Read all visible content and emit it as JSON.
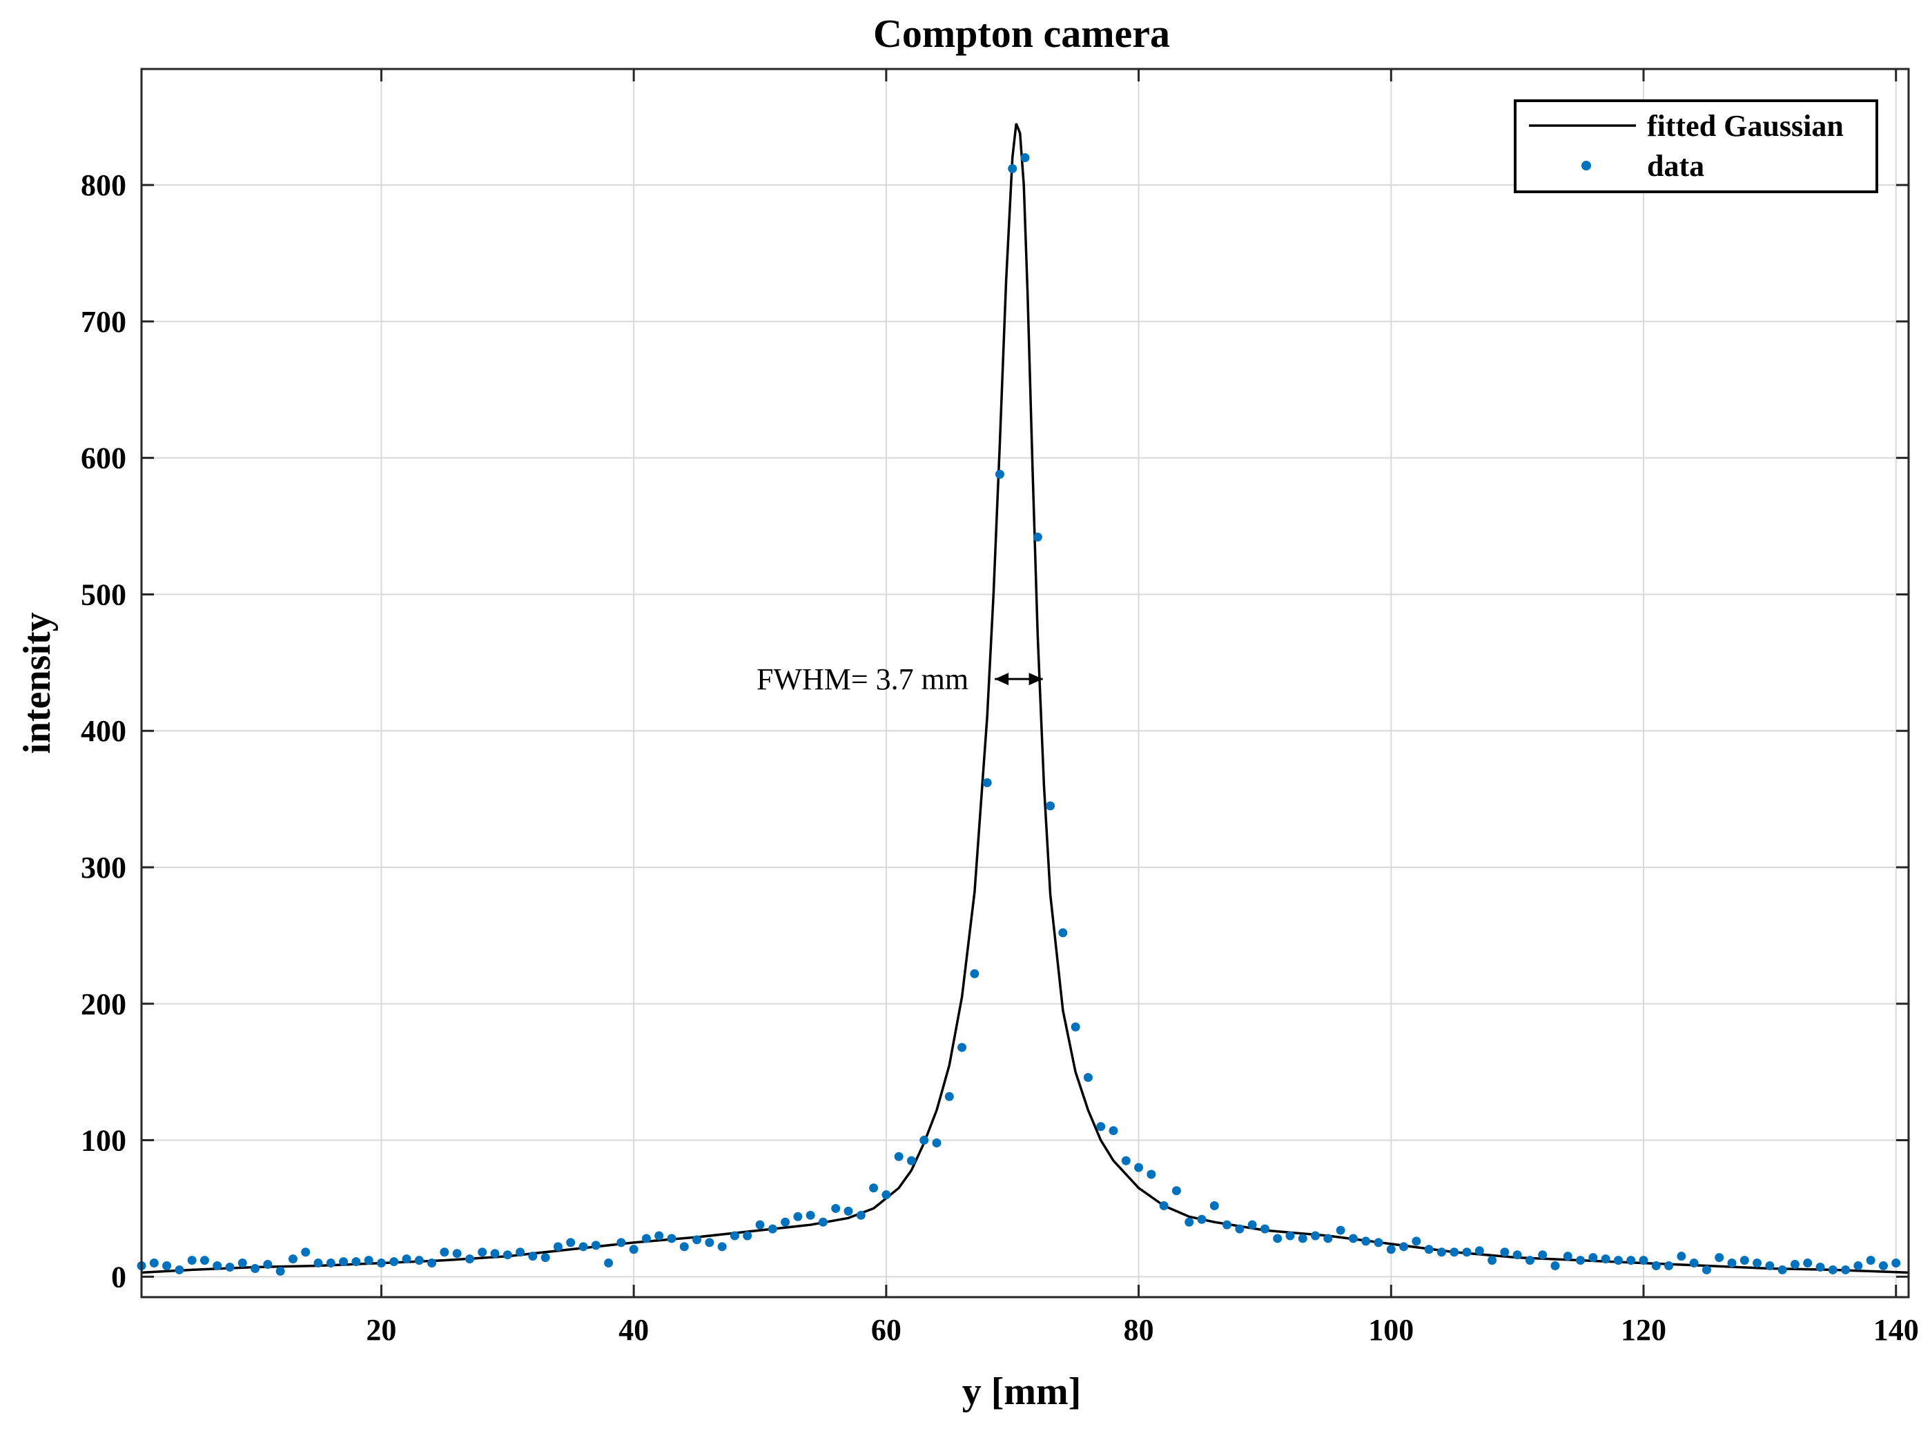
{
  "chart_data": {
    "type": "scatter",
    "title": "Compton camera",
    "xlabel": "y [mm]",
    "ylabel": "intensity",
    "xlim": [
      1,
      141
    ],
    "ylim": [
      -15,
      885
    ],
    "xticks": [
      20,
      40,
      60,
      80,
      100,
      120,
      140
    ],
    "yticks": [
      0,
      100,
      200,
      300,
      400,
      500,
      600,
      700,
      800
    ],
    "grid": true,
    "legend_position": "top-right",
    "colors": {
      "fit": "#000000",
      "data": "#0072bd"
    },
    "annotation": {
      "text": "FWHM= 3.7 mm",
      "x_left": 68.6,
      "x_right": 72.4,
      "y": 438
    },
    "series": [
      {
        "name": "fitted Gaussian",
        "kind": "line",
        "x": [
          1,
          5,
          10,
          15,
          20,
          25,
          30,
          35,
          40,
          45,
          50,
          54,
          57,
          59,
          61,
          62,
          63,
          64,
          65,
          66,
          67,
          68,
          68.5,
          69,
          69.5,
          70,
          70.3,
          70.6,
          70.9,
          71.2,
          71.6,
          72,
          72.5,
          73,
          74,
          75,
          76,
          77,
          78,
          80,
          82,
          84,
          86,
          90,
          95,
          100,
          105,
          110,
          115,
          120,
          125,
          130,
          135,
          141
        ],
        "y": [
          3,
          5,
          7,
          8,
          10,
          12,
          15,
          20,
          25,
          29,
          34,
          38,
          43,
          50,
          65,
          78,
          98,
          122,
          155,
          205,
          282,
          410,
          500,
          610,
          730,
          820,
          845,
          838,
          800,
          720,
          590,
          470,
          360,
          280,
          195,
          150,
          122,
          100,
          85,
          65,
          52,
          44,
          40,
          34,
          30,
          24,
          18,
          14,
          12,
          10,
          8,
          6,
          5,
          3
        ]
      },
      {
        "name": "data",
        "kind": "scatter",
        "x": [
          1,
          2,
          3,
          4,
          5,
          6,
          7,
          8,
          9,
          10,
          11,
          12,
          13,
          14,
          15,
          16,
          17,
          18,
          19,
          20,
          21,
          22,
          23,
          24,
          25,
          26,
          27,
          28,
          29,
          30,
          31,
          32,
          33,
          34,
          35,
          36,
          37,
          38,
          39,
          40,
          41,
          42,
          43,
          44,
          45,
          46,
          47,
          48,
          49,
          50,
          51,
          52,
          53,
          54,
          55,
          56,
          57,
          58,
          59,
          60,
          61,
          62,
          63,
          64,
          65,
          66,
          67,
          68,
          69,
          70,
          71,
          72,
          73,
          74,
          75,
          76,
          77,
          78,
          79,
          80,
          81,
          82,
          83,
          84,
          85,
          86,
          87,
          88,
          89,
          90,
          91,
          92,
          93,
          94,
          95,
          96,
          97,
          98,
          99,
          100,
          101,
          102,
          103,
          104,
          105,
          106,
          107,
          108,
          109,
          110,
          111,
          112,
          113,
          114,
          115,
          116,
          117,
          118,
          119,
          120,
          121,
          122,
          123,
          124,
          125,
          126,
          127,
          128,
          129,
          130,
          131,
          132,
          133,
          134,
          135,
          136,
          137,
          138,
          139,
          140
        ],
        "y": [
          8,
          10,
          8,
          5,
          12,
          12,
          8,
          7,
          10,
          6,
          9,
          4,
          13,
          18,
          10,
          10,
          11,
          11,
          12,
          10,
          11,
          13,
          12,
          10,
          18,
          17,
          13,
          18,
          17,
          16,
          18,
          15,
          14,
          22,
          25,
          22,
          23,
          10,
          25,
          20,
          28,
          30,
          28,
          22,
          27,
          25,
          22,
          30,
          30,
          38,
          35,
          40,
          44,
          45,
          40,
          50,
          48,
          45,
          65,
          60,
          88,
          85,
          100,
          98,
          132,
          168,
          222,
          362,
          588,
          812,
          820,
          542,
          345,
          252,
          183,
          146,
          110,
          107,
          85,
          80,
          75,
          52,
          63,
          40,
          42,
          52,
          38,
          35,
          38,
          35,
          28,
          30,
          28,
          30,
          28,
          34,
          28,
          26,
          25,
          20,
          22,
          26,
          20,
          18,
          18,
          18,
          19,
          12,
          18,
          16,
          12,
          16,
          8,
          15,
          12,
          14,
          13,
          12,
          12,
          12,
          8,
          8,
          15,
          10,
          5,
          14,
          10,
          12,
          10,
          8,
          5,
          9,
          10,
          7,
          5,
          5,
          8,
          12,
          8,
          10
        ]
      }
    ]
  }
}
